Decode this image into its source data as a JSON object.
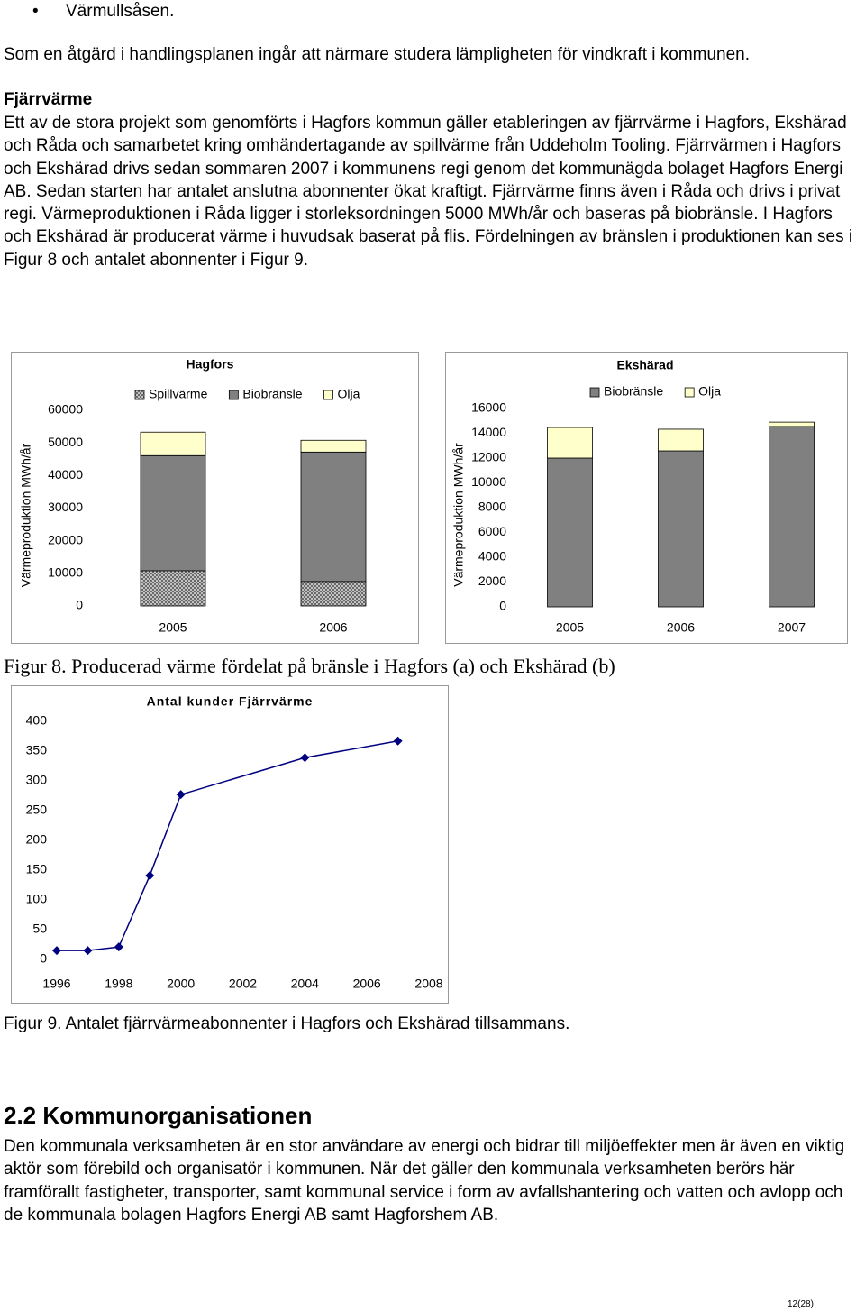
{
  "bullet": "Värmullsåsen.",
  "intro": "Som en åtgärd i handlingsplanen ingår att närmare studera lämpligheten för vindkraft i kommunen.",
  "section_heading": "Fjärrvärme",
  "section_text": "Ett av de stora projekt som genomförts i Hagfors kommun gäller etableringen av fjärrvärme i Hagfors, Ekshärad och Råda och samarbetet kring omhändertagande av spillvärme från Uddeholm Tooling. Fjärrvärmen i Hagfors och Ekshärad drivs sedan sommaren 2007 i kommunens regi genom det kommunägda bolaget Hagfors Energi AB. Sedan starten har antalet anslutna abonnenter ökat kraftigt. Fjärrvärme finns även i Råda och drivs i privat regi. Värmeproduktionen i Råda ligger i storleksordningen 5000 MWh/år och baseras på biobränsle. I Hagfors och Ekshärad är producerat värme i huvudsak baserat på flis. Fördelningen av bränslen i produktionen kan ses i Figur 8 och antalet abonnenter i Figur 9.",
  "chart_data": [
    {
      "type": "stacked_bar",
      "title": "Hagfors",
      "y_label": "Värmeproduktion MWh/år",
      "categories": [
        "2005",
        "2006"
      ],
      "series": [
        {
          "name": "Spillvärme",
          "color": "#a6a6a6",
          "pattern": "hatch",
          "values": [
            10800,
            7500
          ]
        },
        {
          "name": "Biobränsle",
          "color": "#808080",
          "values": [
            35300,
            39700
          ]
        },
        {
          "name": "Olja",
          "color": "#ffffcc",
          "values": [
            7200,
            3600
          ]
        }
      ],
      "ylim": [
        0,
        60000
      ],
      "yticks": [
        0,
        10000,
        20000,
        30000,
        40000,
        50000,
        60000
      ],
      "grid": false,
      "legend": "top"
    },
    {
      "type": "stacked_bar",
      "title": "Ekshärad",
      "y_label": "Värmeproduktion MWh/år",
      "categories": [
        "2005",
        "2006",
        "2007"
      ],
      "series": [
        {
          "name": "Biobränsle",
          "color": "#808080",
          "values": [
            12000,
            12580,
            14550
          ]
        },
        {
          "name": "Olja",
          "color": "#ffffcc",
          "values": [
            2470,
            1750,
            350
          ]
        }
      ],
      "ylim": [
        0,
        16000
      ],
      "yticks": [
        0,
        2000,
        4000,
        6000,
        8000,
        10000,
        12000,
        14000,
        16000
      ],
      "grid": false,
      "legend": "top"
    },
    {
      "type": "line",
      "title": "Antal kunder Fjärrvärme",
      "x": [
        1996,
        1997,
        1998,
        1999,
        2000,
        2004,
        2007
      ],
      "values": [
        15,
        15,
        21,
        141,
        277,
        339,
        367
      ],
      "color": "#000080",
      "xlim": [
        1996,
        2008
      ],
      "xticks": [
        1996,
        1998,
        2000,
        2002,
        2004,
        2006,
        2008
      ],
      "ylim": [
        0,
        400
      ],
      "yticks": [
        0,
        50,
        100,
        150,
        200,
        250,
        300,
        350,
        400
      ],
      "grid": false
    }
  ],
  "caption_fig8": "Figur 8. Producerad värme fördelat på bränsle i Hagfors (a) och Ekshärad (b)",
  "caption_fig9": "Figur 9. Antalet fjärrvärmeabonnenter i Hagfors och Ekshärad tillsammans.",
  "heading_2_2": "2.2 Kommunorganisationen",
  "text_2_2": "Den kommunala verksamheten är en stor användare av energi och bidrar till miljöeffekter men är även en viktig aktör som förebild och organisatör i kommunen. När det gäller den kommunala verksamheten berörs här framförallt fastigheter, transporter, samt kommunal service i form av avfallshantering och vatten och avlopp och de kommunala bolagen Hagfors Energi AB samt Hagforshem AB.",
  "page_number": "12(28)"
}
